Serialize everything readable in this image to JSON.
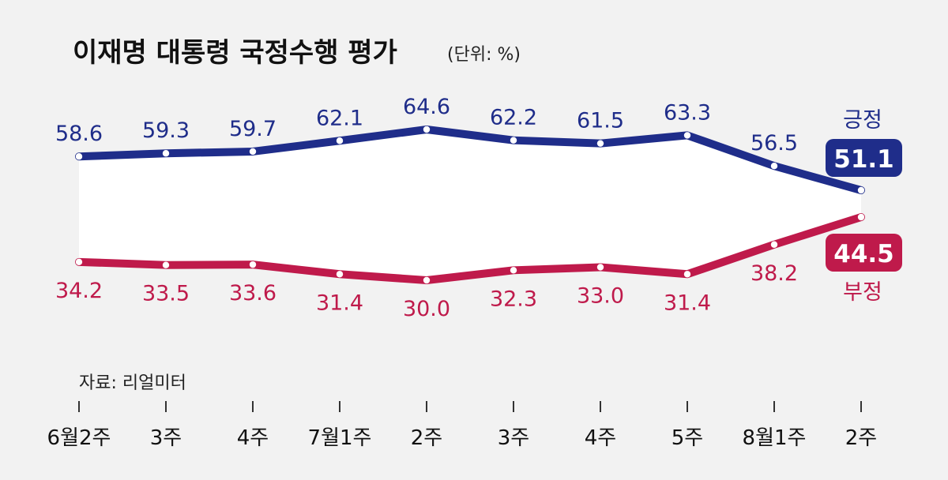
{
  "chart_data": {
    "type": "line",
    "title": "이재명 대통령 국정수행 평가",
    "unit_note": "(단위: %)",
    "source": "자료: 리얼미터",
    "categories": [
      "6월2주",
      "3주",
      "4주",
      "7월1주",
      "2주",
      "3주",
      "4주",
      "5주",
      "8월1주",
      "2주"
    ],
    "series": [
      {
        "name": "긍정",
        "color": "#1f2d8a",
        "values": [
          58.6,
          59.3,
          59.7,
          62.1,
          64.6,
          62.2,
          61.5,
          63.3,
          56.5,
          51.1
        ],
        "labels": [
          "58.6",
          "59.3",
          "59.7",
          "62.1",
          "64.6",
          "62.2",
          "61.5",
          "63.3",
          "56.5",
          "51.1"
        ]
      },
      {
        "name": "부정",
        "color": "#bf1a4b",
        "values": [
          34.2,
          33.5,
          33.6,
          31.4,
          30.0,
          32.3,
          33.0,
          31.4,
          38.2,
          44.5
        ],
        "labels": [
          "34.2",
          "33.5",
          "33.6",
          "31.4",
          "30.0",
          "32.3",
          "33.0",
          "31.4",
          "38.2",
          "44.5"
        ]
      }
    ],
    "grid": false,
    "legend": "series names at right end of lines"
  }
}
